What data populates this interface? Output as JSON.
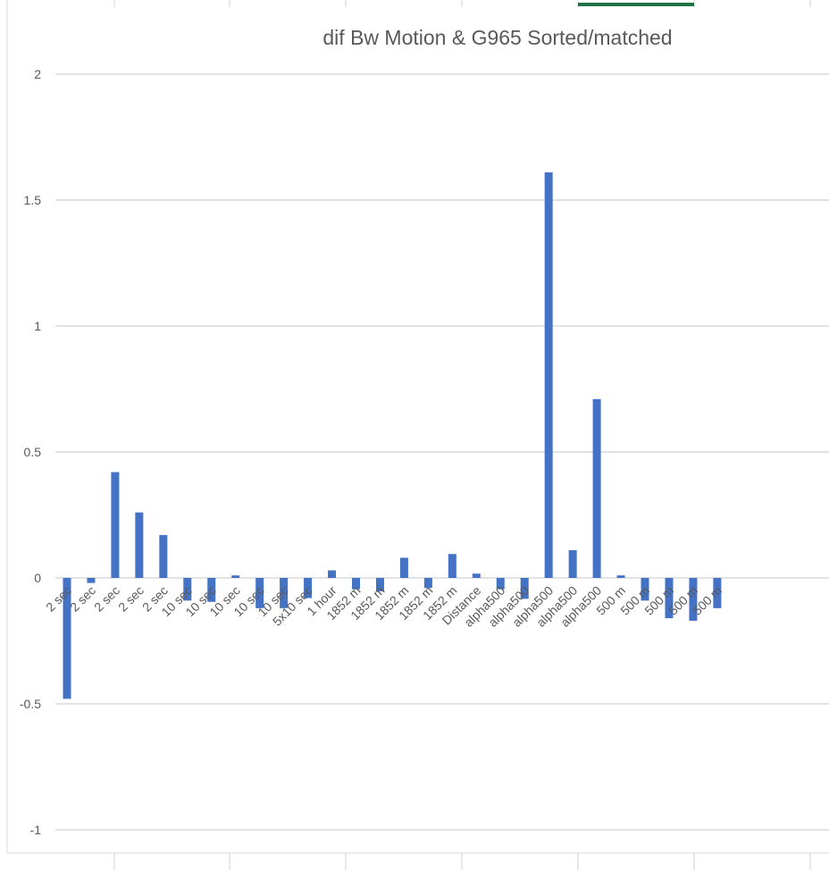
{
  "chart_data": {
    "type": "bar",
    "title": "dif Bw Motion & G965 Sorted/matched",
    "xlabel": "",
    "ylabel": "",
    "ylim": [
      -1,
      2
    ],
    "yticks": [
      2,
      1.5,
      1,
      0.5,
      0,
      -0.5,
      -1
    ],
    "ytick_labels": [
      "2",
      "1.5",
      "1",
      "0.5",
      "0",
      "-0.5",
      "-1"
    ],
    "grid": true,
    "legend": "none",
    "bar_color": "#4472C4",
    "categories": [
      "2 sec",
      "2 sec",
      "2 sec",
      "2 sec",
      "2 sec",
      "10 sec",
      "10 sec",
      "10 sec",
      "10 sec",
      "10 sec",
      "5x10 sec",
      "1 hour",
      "1852 m",
      "1852 m",
      "1852 m",
      "1852 m",
      "1852 m",
      "Distance",
      "alpha500",
      "alpha500",
      "alpha500",
      "alpha500",
      "alpha500",
      "500 m",
      "500 m",
      "500 m",
      "500 m",
      "500 m"
    ],
    "values": [
      -0.48,
      -0.02,
      0.42,
      0.26,
      0.17,
      -0.09,
      -0.095,
      0.01,
      -0.12,
      -0.12,
      -0.08,
      0.03,
      -0.045,
      -0.053,
      0.08,
      -0.04,
      0.095,
      0.017,
      -0.045,
      -0.083,
      1.61,
      0.11,
      0.71,
      0.01,
      -0.09,
      -0.16,
      -0.17,
      -0.12
    ]
  }
}
